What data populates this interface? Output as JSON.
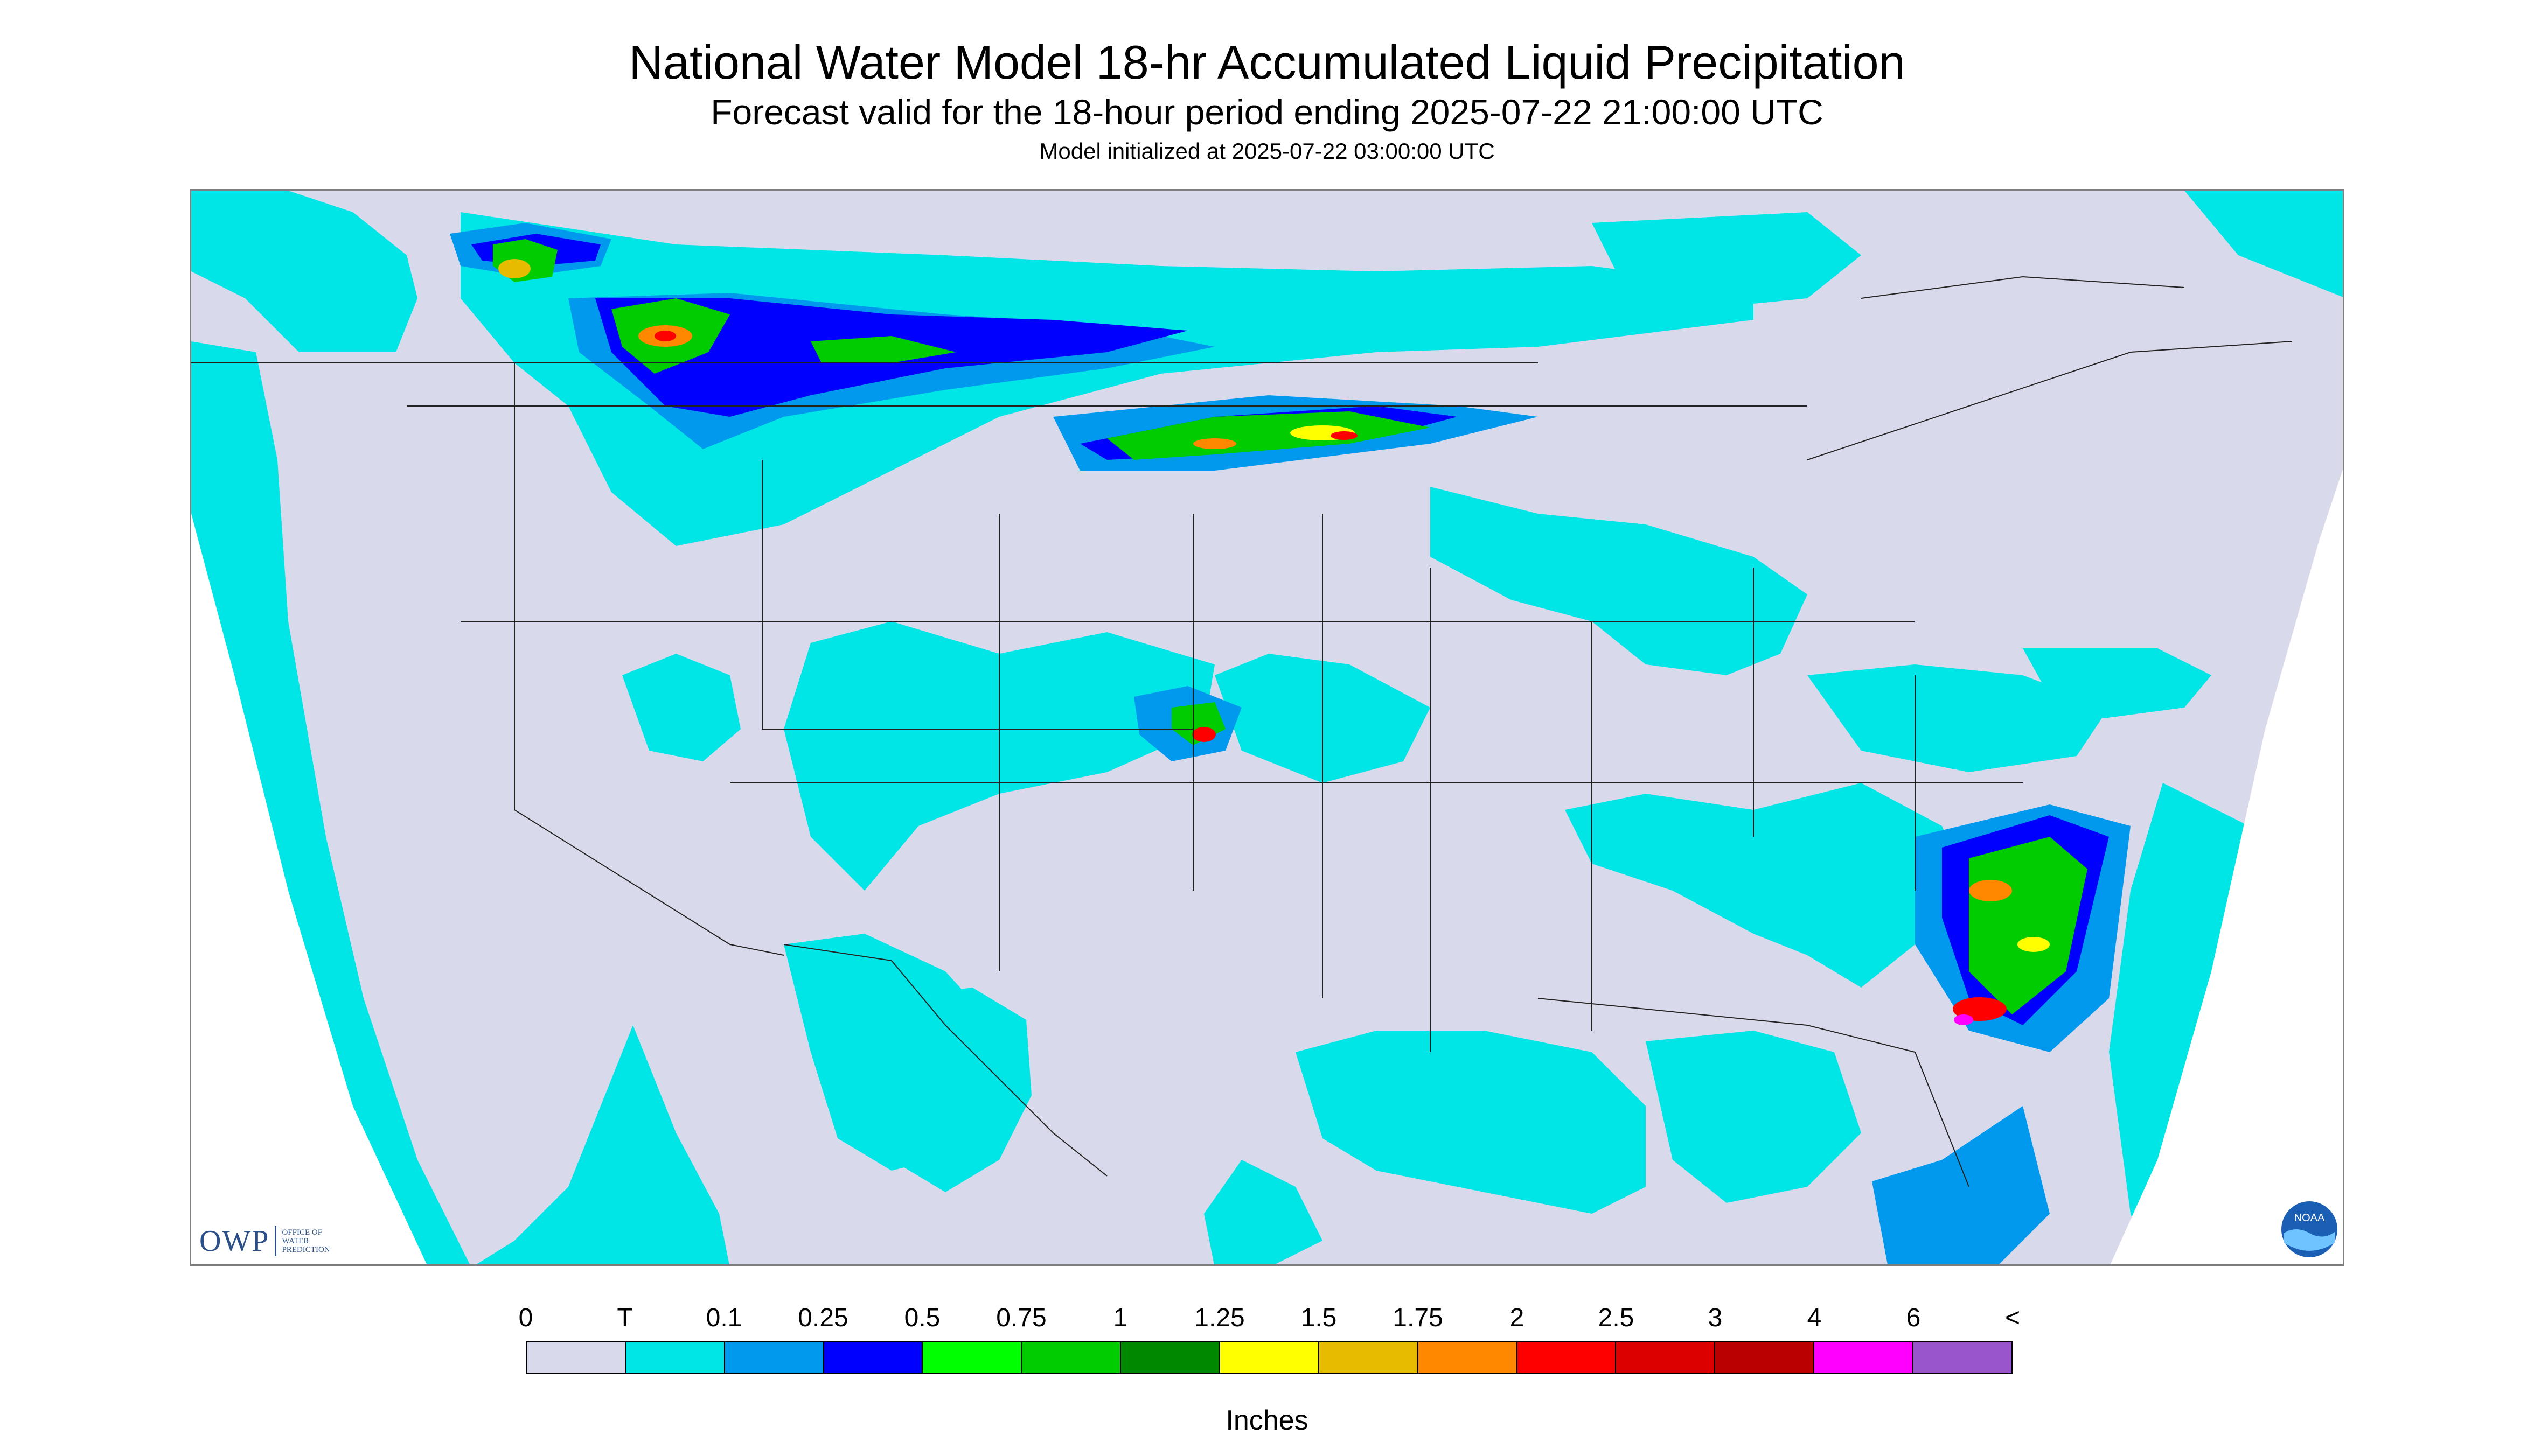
{
  "title": "National Water Model 18-hr Accumulated Liquid Precipitation",
  "subtitle": "Forecast valid for the 18-hour period ending 2025-07-22 21:00:00 UTC",
  "init_text": "Model initialized at 2025-07-22 03:00:00 UTC",
  "logos": {
    "owp_mark": "OWP",
    "owp_text": [
      "OFFICE OF",
      "WATER",
      "PREDICTION"
    ],
    "noaa_mark": "NOAA"
  },
  "colors": {
    "background": "#d9d9ec",
    "border": "#7f7f7f",
    "ocean": "#00e5e5"
  },
  "legend": {
    "units_label": "Inches",
    "labels": [
      "0",
      "T",
      "0.1",
      "0.25",
      "0.5",
      "0.75",
      "1",
      "1.25",
      "1.5",
      "1.75",
      "2",
      "2.5",
      "3",
      "4",
      "6",
      "<"
    ],
    "colors": [
      "#d9d9ec",
      "#00e5e5",
      "#0099ee",
      "#0000ff",
      "#00ff00",
      "#00cc00",
      "#008800",
      "#ffff00",
      "#e6bb00",
      "#ff8800",
      "#ff0000",
      "#dd0000",
      "#bb0000",
      "#ff00ff",
      "#9955cc"
    ]
  }
}
